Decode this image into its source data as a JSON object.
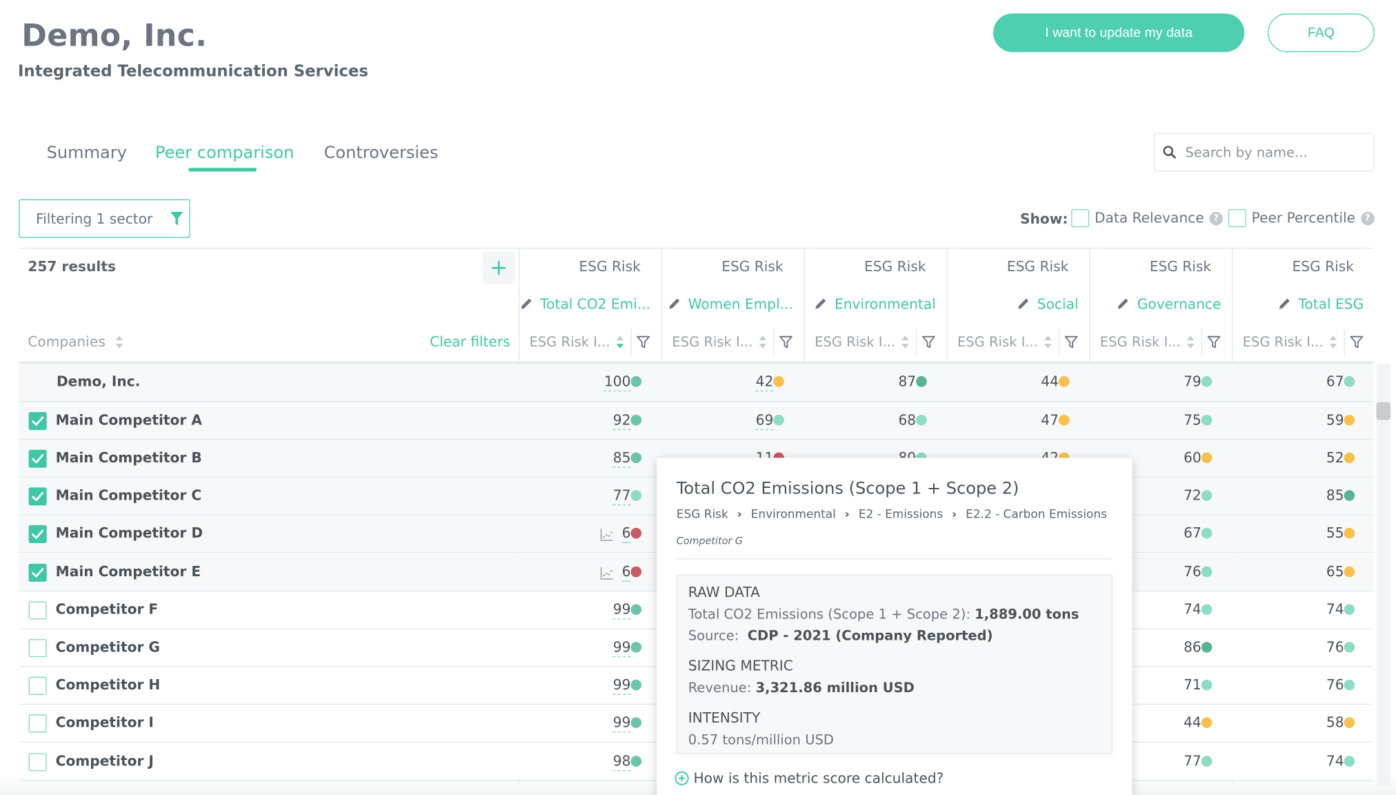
{
  "header": {
    "company_name": "Demo, Inc.",
    "company_sector": "Integrated Telecommunication Services",
    "update_button": "I want to update my data",
    "faq_button": "FAQ"
  },
  "tabs": [
    {
      "label": "Summary",
      "active": false
    },
    {
      "label": "Peer comparison",
      "active": true
    },
    {
      "label": "Controversies",
      "active": false
    }
  ],
  "search": {
    "placeholder": "Search by name..."
  },
  "filter": {
    "label": "Filtering 1 sector"
  },
  "show": {
    "label": "Show:",
    "options": [
      {
        "label": "Data Relevance",
        "checked": false
      },
      {
        "label": "Peer Percentile",
        "checked": false
      }
    ]
  },
  "table": {
    "results": "257 results",
    "companies_header": "Companies",
    "clear_filters": "Clear filters",
    "columns": [
      {
        "group": "ESG Risk",
        "metric": "Total CO2 Emi...",
        "sort_label": "ESG Risk I..."
      },
      {
        "group": "ESG Risk",
        "metric": "Women Empl...",
        "sort_label": "ESG Risk I..."
      },
      {
        "group": "ESG Risk",
        "metric": "Environmental",
        "sort_label": "ESG Risk I..."
      },
      {
        "group": "ESG Risk",
        "metric": "Social",
        "sort_label": "ESG Risk I..."
      },
      {
        "group": "ESG Risk",
        "metric": "Governance",
        "sort_label": "ESG Risk I..."
      },
      {
        "group": "ESG Risk",
        "metric": "Total ESG",
        "sort_label": "ESG Risk I..."
      }
    ],
    "rows": [
      {
        "name": "Demo, Inc.",
        "checkbox": null,
        "trend": false,
        "cells": [
          {
            "v": "100",
            "c": "#6cc4ab",
            "u": true
          },
          {
            "v": "42",
            "c": "#f7c14e",
            "u": true
          },
          {
            "v": "87",
            "c": "#57b596",
            "u": false
          },
          {
            "v": "44",
            "c": "#f7c14e",
            "u": false
          },
          {
            "v": "79",
            "c": "#8edcc6",
            "u": false
          },
          {
            "v": "67",
            "c": "#8edcc6",
            "u": false
          }
        ]
      },
      {
        "name": "Main Competitor A",
        "checkbox": true,
        "trend": false,
        "cells": [
          {
            "v": "92",
            "c": "#6cc4ab",
            "u": true
          },
          {
            "v": "69",
            "c": "#8edcc6",
            "u": true
          },
          {
            "v": "68",
            "c": "#8edcc6",
            "u": false
          },
          {
            "v": "47",
            "c": "#f7c14e",
            "u": false
          },
          {
            "v": "75",
            "c": "#8edcc6",
            "u": false
          },
          {
            "v": "59",
            "c": "#f7c14e",
            "u": false
          }
        ]
      },
      {
        "name": "Main Competitor B",
        "checkbox": true,
        "trend": false,
        "cells": [
          {
            "v": "85",
            "c": "#6cc4ab",
            "u": true
          },
          {
            "v": "11",
            "c": "#c75a63",
            "u": true
          },
          {
            "v": "80",
            "c": "#8edcc6",
            "u": false
          },
          {
            "v": "42",
            "c": "#f7c14e",
            "u": false
          },
          {
            "v": "60",
            "c": "#f7c14e",
            "u": false
          },
          {
            "v": "52",
            "c": "#f7c14e",
            "u": false
          }
        ]
      },
      {
        "name": "Main Competitor C",
        "checkbox": true,
        "trend": false,
        "cells": [
          {
            "v": "77",
            "c": "#8edcc6",
            "u": true
          },
          {
            "v": "",
            "c": "",
            "u": false
          },
          {
            "v": "",
            "c": "",
            "u": false
          },
          {
            "v": "",
            "c": "",
            "u": false
          },
          {
            "v": "72",
            "c": "#8edcc6",
            "u": false
          },
          {
            "v": "85",
            "c": "#57b596",
            "u": false
          }
        ]
      },
      {
        "name": "Main Competitor D",
        "checkbox": true,
        "trend": true,
        "cells": [
          {
            "v": "6",
            "c": "#c75a63",
            "u": true
          },
          {
            "v": "",
            "c": "",
            "u": false
          },
          {
            "v": "",
            "c": "",
            "u": false
          },
          {
            "v": "",
            "c": "",
            "u": false
          },
          {
            "v": "67",
            "c": "#8edcc6",
            "u": false
          },
          {
            "v": "55",
            "c": "#f7c14e",
            "u": false
          }
        ]
      },
      {
        "name": "Main Competitor E",
        "checkbox": true,
        "trend": true,
        "cells": [
          {
            "v": "6",
            "c": "#c75a63",
            "u": true
          },
          {
            "v": "",
            "c": "",
            "u": false
          },
          {
            "v": "",
            "c": "",
            "u": false
          },
          {
            "v": "",
            "c": "",
            "u": false
          },
          {
            "v": "76",
            "c": "#8edcc6",
            "u": false
          },
          {
            "v": "65",
            "c": "#f7c14e",
            "u": false
          }
        ]
      },
      {
        "name": "Competitor F",
        "checkbox": false,
        "trend": false,
        "cells": [
          {
            "v": "99",
            "c": "#6cc4ab",
            "u": true
          },
          {
            "v": "",
            "c": "",
            "u": false
          },
          {
            "v": "",
            "c": "",
            "u": false
          },
          {
            "v": "",
            "c": "",
            "u": false
          },
          {
            "v": "74",
            "c": "#8edcc6",
            "u": false
          },
          {
            "v": "74",
            "c": "#8edcc6",
            "u": false
          }
        ]
      },
      {
        "name": "Competitor G",
        "checkbox": false,
        "trend": false,
        "cells": [
          {
            "v": "99",
            "c": "#6cc4ab",
            "u": true
          },
          {
            "v": "",
            "c": "",
            "u": false
          },
          {
            "v": "",
            "c": "",
            "u": false
          },
          {
            "v": "",
            "c": "",
            "u": false
          },
          {
            "v": "86",
            "c": "#57b596",
            "u": false
          },
          {
            "v": "76",
            "c": "#8edcc6",
            "u": false
          }
        ]
      },
      {
        "name": "Competitor H",
        "checkbox": false,
        "trend": false,
        "cells": [
          {
            "v": "99",
            "c": "#6cc4ab",
            "u": true
          },
          {
            "v": "",
            "c": "",
            "u": false
          },
          {
            "v": "",
            "c": "",
            "u": false
          },
          {
            "v": "",
            "c": "",
            "u": false
          },
          {
            "v": "71",
            "c": "#8edcc6",
            "u": false
          },
          {
            "v": "76",
            "c": "#8edcc6",
            "u": false
          }
        ]
      },
      {
        "name": "Competitor I",
        "checkbox": false,
        "trend": false,
        "cells": [
          {
            "v": "99",
            "c": "#6cc4ab",
            "u": true
          },
          {
            "v": "",
            "c": "",
            "u": false
          },
          {
            "v": "",
            "c": "",
            "u": false
          },
          {
            "v": "",
            "c": "",
            "u": false
          },
          {
            "v": "44",
            "c": "#f7c14e",
            "u": false
          },
          {
            "v": "58",
            "c": "#f7c14e",
            "u": false
          }
        ]
      },
      {
        "name": "Competitor J",
        "checkbox": false,
        "trend": false,
        "cells": [
          {
            "v": "98",
            "c": "#6cc4ab",
            "u": true
          },
          {
            "v": "",
            "c": "",
            "u": false
          },
          {
            "v": "",
            "c": "",
            "u": false
          },
          {
            "v": "",
            "c": "",
            "u": false
          },
          {
            "v": "77",
            "c": "#8edcc6",
            "u": false
          },
          {
            "v": "74",
            "c": "#8edcc6",
            "u": false
          }
        ]
      }
    ]
  },
  "tooltip": {
    "title": "Total CO2 Emissions (Scope 1 + Scope 2)",
    "breadcrumb": [
      "ESG Risk",
      "Environmental",
      "E2 - Emissions",
      "E2.2 - Carbon Emissions"
    ],
    "company": "Competitor G",
    "raw_data_heading": "RAW DATA",
    "raw_data_label": "Total CO2 Emissions (Scope 1 + Scope 2):",
    "raw_data_value": "1,889.00 tons",
    "source_label": "Source:",
    "source_value": "CDP - 2021 (Company Reported)",
    "sizing_heading": "SIZING METRIC",
    "sizing_label": "Revenue:",
    "sizing_value": "3,321.86 million USD",
    "intensity_heading": "INTENSITY",
    "intensity_value": "0.57 tons/million USD",
    "help_link": "How is this metric score calculated?"
  },
  "colors": {
    "accent": "#3fc7a6",
    "red": "#c75a63",
    "yellow": "#f7c14e",
    "green_light": "#8edcc6",
    "green_dark": "#57b596"
  }
}
